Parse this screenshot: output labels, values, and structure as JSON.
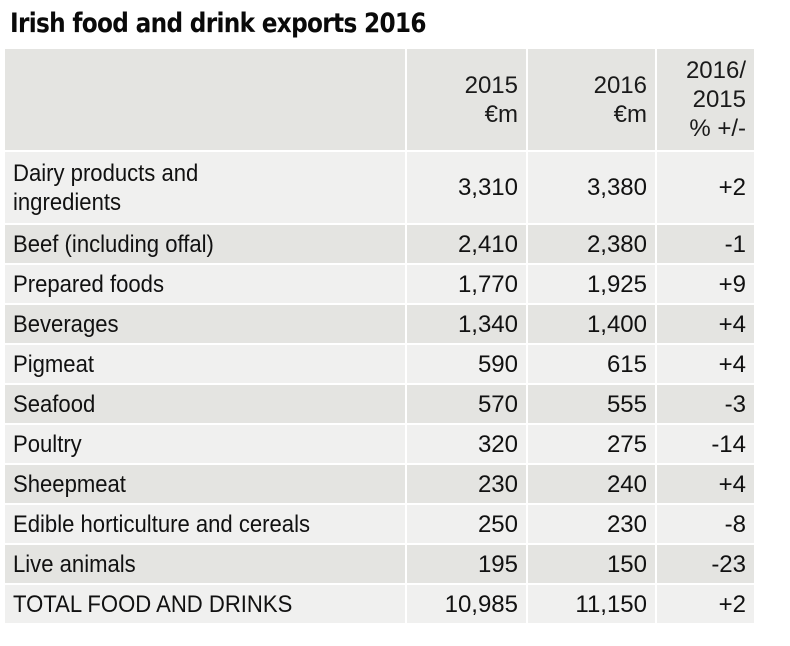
{
  "title": "Irish food and drink exports 2016",
  "table": {
    "headers": [
      "",
      "2015\n€m",
      "2016\n€m",
      "2016/\n2015\n% +/-"
    ],
    "header_lines": {
      "c2": [
        "2015",
        "€m"
      ],
      "c3": [
        "2016",
        "€m"
      ],
      "c4": [
        "2016/",
        "2015",
        "% +/-"
      ]
    },
    "rows": [
      {
        "label": "Dairy products and ingredients",
        "label_lines": [
          "Dairy products and",
          "ingredients"
        ],
        "v2015": "3,310",
        "v2016": "3,380",
        "change": "+2"
      },
      {
        "label": "Beef (including offal)",
        "v2015": "2,410",
        "v2016": "2,380",
        "change": "-1"
      },
      {
        "label": "Prepared foods",
        "v2015": "1,770",
        "v2016": "1,925",
        "change": "+9"
      },
      {
        "label": "Beverages",
        "v2015": "1,340",
        "v2016": "1,400",
        "change": "+4"
      },
      {
        "label": "Pigmeat",
        "v2015": "590",
        "v2016": "615",
        "change": "+4"
      },
      {
        "label": "Seafood",
        "v2015": "570",
        "v2016": "555",
        "change": "-3"
      },
      {
        "label": "Poultry",
        "v2015": "320",
        "v2016": "275",
        "change": "-14"
      },
      {
        "label": "Sheepmeat",
        "v2015": "230",
        "v2016": "240",
        "change": "+4"
      },
      {
        "label": "Edible horticulture and cereals",
        "v2015": "250",
        "v2016": "230",
        "change": "-8"
      },
      {
        "label": "Live animals",
        "v2015": "195",
        "v2016": "150",
        "change": "-23"
      },
      {
        "label": "TOTAL FOOD AND DRINKS",
        "v2015": "10,985",
        "v2016": "11,150",
        "change": "+2"
      }
    ]
  },
  "colors": {
    "header_bg": "#e4e4e1",
    "row_light": "#f0f0ef",
    "row_dark": "#e4e4e1",
    "text": "#111111"
  }
}
